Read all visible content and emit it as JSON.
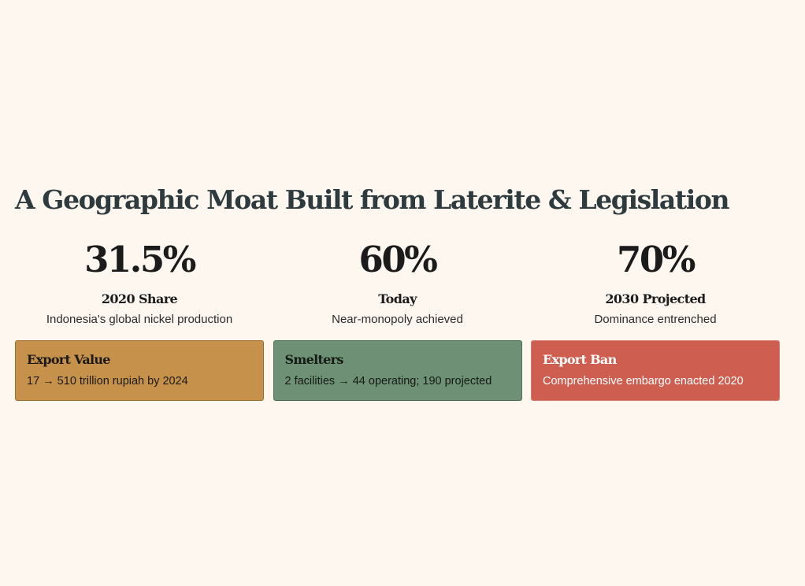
{
  "title": "A Geographic Moat Built from Laterite & Legislation",
  "stats": [
    {
      "value": "31.5%",
      "label": "2020 Share",
      "desc": "Indonesia's global nickel production"
    },
    {
      "value": "60%",
      "label": "Today",
      "desc": "Near-monopoly achieved"
    },
    {
      "value": "70%",
      "label": "2030 Projected",
      "desc": "Dominance entrenched"
    }
  ],
  "cards": [
    {
      "title": "Export Value",
      "text": "17 → 510 trillion rupiah by 2024",
      "color": "#c6914a"
    },
    {
      "title": "Smelters",
      "text": "2 facilities → 44 operating; 190 projected",
      "color": "#6e9175"
    },
    {
      "title": "Export Ban",
      "text": "Comprehensive embargo enacted 2020",
      "color": "#cd5e50"
    }
  ]
}
